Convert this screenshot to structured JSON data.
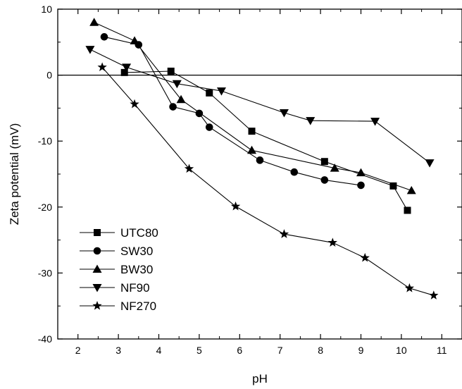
{
  "chart_data": {
    "type": "line",
    "title": "",
    "xlabel": "pH",
    "ylabel": "Zeta potential (mV)",
    "xlim": [
      1.5,
      11.5
    ],
    "ylim": [
      -40,
      10
    ],
    "x_ticks": [
      2,
      3,
      4,
      5,
      6,
      7,
      8,
      9,
      10,
      11
    ],
    "y_ticks": [
      -40,
      -30,
      -20,
      -10,
      0,
      10
    ],
    "x_tick_labels": [
      "2",
      "3",
      "4",
      "5",
      "6",
      "7",
      "8",
      "9",
      "10",
      "11"
    ],
    "y_tick_labels": [
      "-40",
      "-30",
      "-20",
      "-10",
      "0",
      "10"
    ],
    "reference_line_y": 0,
    "grid": false,
    "legend_position": "bottom-left",
    "series": [
      {
        "name": "UTC80",
        "marker": "square",
        "points": [
          [
            3.15,
            0.4
          ],
          [
            4.3,
            0.6
          ],
          [
            5.25,
            -2.7
          ],
          [
            6.3,
            -8.5
          ],
          [
            8.1,
            -13.1
          ],
          [
            9.8,
            -16.8
          ],
          [
            10.15,
            -20.5
          ]
        ]
      },
      {
        "name": "SW30",
        "marker": "circle",
        "points": [
          [
            2.65,
            5.8
          ],
          [
            3.5,
            4.6
          ],
          [
            4.35,
            -4.8
          ],
          [
            5.0,
            -5.8
          ],
          [
            5.25,
            -7.9
          ],
          [
            6.5,
            -12.9
          ],
          [
            7.35,
            -14.7
          ],
          [
            8.1,
            -15.9
          ],
          [
            9.0,
            -16.7
          ]
        ]
      },
      {
        "name": "BW30",
        "marker": "triangle-up",
        "points": [
          [
            2.4,
            8.0
          ],
          [
            3.4,
            5.2
          ],
          [
            4.55,
            -3.7
          ],
          [
            6.3,
            -11.4
          ],
          [
            8.35,
            -14.1
          ],
          [
            9.0,
            -14.8
          ],
          [
            10.25,
            -17.5
          ]
        ]
      },
      {
        "name": "NF90",
        "marker": "triangle-down",
        "points": [
          [
            2.3,
            3.9
          ],
          [
            3.2,
            1.2
          ],
          [
            4.45,
            -1.3
          ],
          [
            5.55,
            -2.4
          ],
          [
            7.1,
            -5.7
          ],
          [
            7.75,
            -6.9
          ],
          [
            9.35,
            -7.0
          ],
          [
            10.7,
            -13.3
          ]
        ]
      },
      {
        "name": "NF270",
        "marker": "star",
        "points": [
          [
            2.6,
            1.2
          ],
          [
            3.4,
            -4.4
          ],
          [
            4.75,
            -14.2
          ],
          [
            5.9,
            -19.9
          ],
          [
            7.1,
            -24.1
          ],
          [
            8.3,
            -25.4
          ],
          [
            9.1,
            -27.7
          ],
          [
            10.2,
            -32.3
          ],
          [
            10.8,
            -33.4
          ]
        ]
      }
    ]
  }
}
